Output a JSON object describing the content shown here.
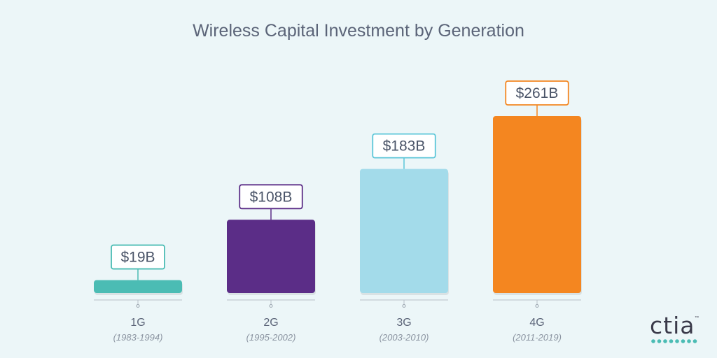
{
  "chart_data": {
    "type": "bar",
    "title": "Wireless Capital Investment by Generation",
    "categories": [
      "1G",
      "2G",
      "3G",
      "4G"
    ],
    "periods": [
      "(1983-1994)",
      "(1995-2002)",
      "(2003-2010)",
      "(2011-2019)"
    ],
    "values": [
      19,
      108,
      183,
      261
    ],
    "value_labels": [
      "$19B",
      "$108B",
      "$183B",
      "$261B"
    ],
    "colors": [
      "#4bbcb4",
      "#5b2d87",
      "#a3dbea",
      "#f48620"
    ],
    "label_border_colors": [
      "#4bbcb4",
      "#5b2d87",
      "#5bc6d8",
      "#f48620"
    ],
    "ylim": [
      0,
      261
    ],
    "grid": false
  },
  "logo": {
    "text": "ctia",
    "trademark": "™",
    "dot_color": "#4bbcb4"
  }
}
